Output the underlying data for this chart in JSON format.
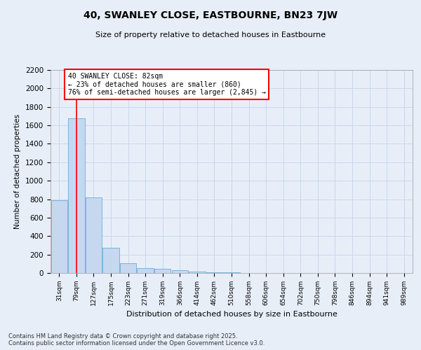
{
  "title": "40, SWANLEY CLOSE, EASTBOURNE, BN23 7JW",
  "subtitle": "Size of property relative to detached houses in Eastbourne",
  "xlabel": "Distribution of detached houses by size in Eastbourne",
  "ylabel": "Number of detached properties",
  "categories": [
    "31sqm",
    "79sqm",
    "127sqm",
    "175sqm",
    "223sqm",
    "271sqm",
    "319sqm",
    "366sqm",
    "414sqm",
    "462sqm",
    "510sqm",
    "558sqm",
    "606sqm",
    "654sqm",
    "702sqm",
    "750sqm",
    "798sqm",
    "846sqm",
    "894sqm",
    "941sqm",
    "989sqm"
  ],
  "values": [
    790,
    1680,
    820,
    270,
    110,
    50,
    45,
    30,
    18,
    10,
    5,
    0,
    0,
    0,
    0,
    0,
    0,
    0,
    0,
    0,
    0
  ],
  "bar_color": "#c5d8f0",
  "bar_edge_color": "#6baed6",
  "property_line_x": 1,
  "annotation_line1": "40 SWANLEY CLOSE: 82sqm",
  "annotation_line2": "← 23% of detached houses are smaller (860)",
  "annotation_line3": "76% of semi-detached houses are larger (2,845) →",
  "ylim": [
    0,
    2200
  ],
  "yticks": [
    0,
    200,
    400,
    600,
    800,
    1000,
    1200,
    1400,
    1600,
    1800,
    2000,
    2200
  ],
  "grid_color": "#c8d8ec",
  "background_color": "#e8eef8",
  "footer_line1": "Contains HM Land Registry data © Crown copyright and database right 2025.",
  "footer_line2": "Contains public sector information licensed under the Open Government Licence v3.0."
}
